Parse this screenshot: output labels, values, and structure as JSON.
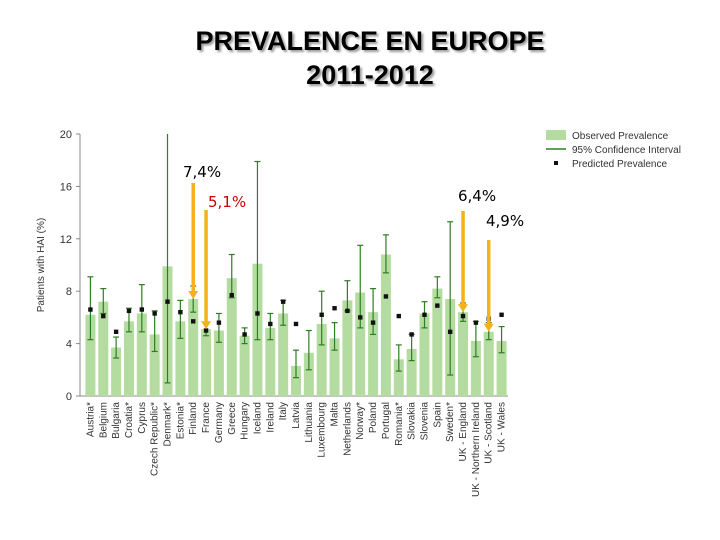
{
  "title_line1": "PREVALENCE EN EUROPE",
  "title_line2": "2011-2012",
  "annotations": [
    {
      "text": "7,4%",
      "color": "#000000"
    },
    {
      "text": "5,1%",
      "color": "#cc0000"
    },
    {
      "text": "6,4%",
      "color": "#000000"
    },
    {
      "text": "4,9%",
      "color": "#000000"
    }
  ],
  "arrow_color": "#f2b21a",
  "chart_data": {
    "type": "bar",
    "ylabel": "Patients with HAI (%)",
    "ylim": [
      0,
      20
    ],
    "yticks": [
      0,
      4,
      8,
      12,
      16,
      20
    ],
    "bar_color": "#b5dca0",
    "ci_color": "#2e7d22",
    "point_color": "#111111",
    "categories": [
      "Austria*",
      "Belgium",
      "Bulgaria",
      "Croatia*",
      "Cyprus",
      "Czech Republic*",
      "Denmark*",
      "Estonia*",
      "Finland",
      "France",
      "Germany",
      "Greece",
      "Hungary",
      "Iceland",
      "Ireland",
      "Italy",
      "Latvia",
      "Lithuania",
      "Luxembourg",
      "Malta",
      "Netherlands",
      "Norway*",
      "Poland",
      "Portugal",
      "Romania*",
      "Slovakia",
      "Slovenia",
      "Spain",
      "Sweden*",
      "UK - England",
      "UK - Northern Ireland",
      "UK - Scotland",
      "UK - Wales"
    ],
    "series": [
      {
        "name": "Observed Prevalence",
        "values": [
          6.2,
          7.2,
          3.7,
          5.7,
          6.3,
          4.7,
          9.9,
          5.7,
          7.4,
          5.1,
          5.0,
          9.0,
          4.6,
          10.1,
          5.2,
          6.3,
          2.3,
          3.3,
          5.5,
          4.4,
          7.3,
          7.9,
          6.4,
          10.8,
          2.8,
          3.6,
          6.3,
          8.2,
          7.4,
          6.4,
          4.2,
          4.9,
          4.2
        ]
      },
      {
        "name": "95% Confidence Interval",
        "lower": [
          4.3,
          6.3,
          2.9,
          4.9,
          4.9,
          3.4,
          1.0,
          4.4,
          6.4,
          4.6,
          4.1,
          7.5,
          4.0,
          4.3,
          4.3,
          5.4,
          1.4,
          2.0,
          3.9,
          3.5,
          6.5,
          5.2,
          4.7,
          9.4,
          1.9,
          2.7,
          5.2,
          7.5,
          1.6,
          5.7,
          3.0,
          4.3,
          3.3
        ],
        "upper": [
          9.1,
          8.2,
          4.5,
          6.7,
          8.5,
          6.5,
          20.0,
          7.3,
          8.4,
          5.6,
          6.3,
          10.8,
          5.2,
          17.9,
          6.3,
          7.3,
          3.5,
          5.0,
          8.0,
          5.6,
          8.8,
          11.5,
          8.2,
          12.3,
          3.9,
          4.7,
          7.2,
          9.1,
          13.3,
          7.1,
          5.7,
          5.6,
          5.3
        ]
      },
      {
        "name": "Predicted Prevalence",
        "values": [
          6.6,
          6.1,
          4.9,
          6.5,
          6.6,
          6.3,
          7.2,
          6.4,
          5.7,
          5.0,
          5.6,
          7.7,
          4.7,
          6.3,
          5.5,
          7.2,
          5.5,
          null,
          6.2,
          6.7,
          6.5,
          6.0,
          5.6,
          7.6,
          6.1,
          4.7,
          6.2,
          6.9,
          4.9,
          6.1,
          5.6,
          5.9,
          6.2
        ]
      }
    ],
    "legend": [
      "Observed Prevalence",
      "95% Confidence Interval",
      "Predicted Prevalence"
    ],
    "legend_position": "top-right"
  }
}
